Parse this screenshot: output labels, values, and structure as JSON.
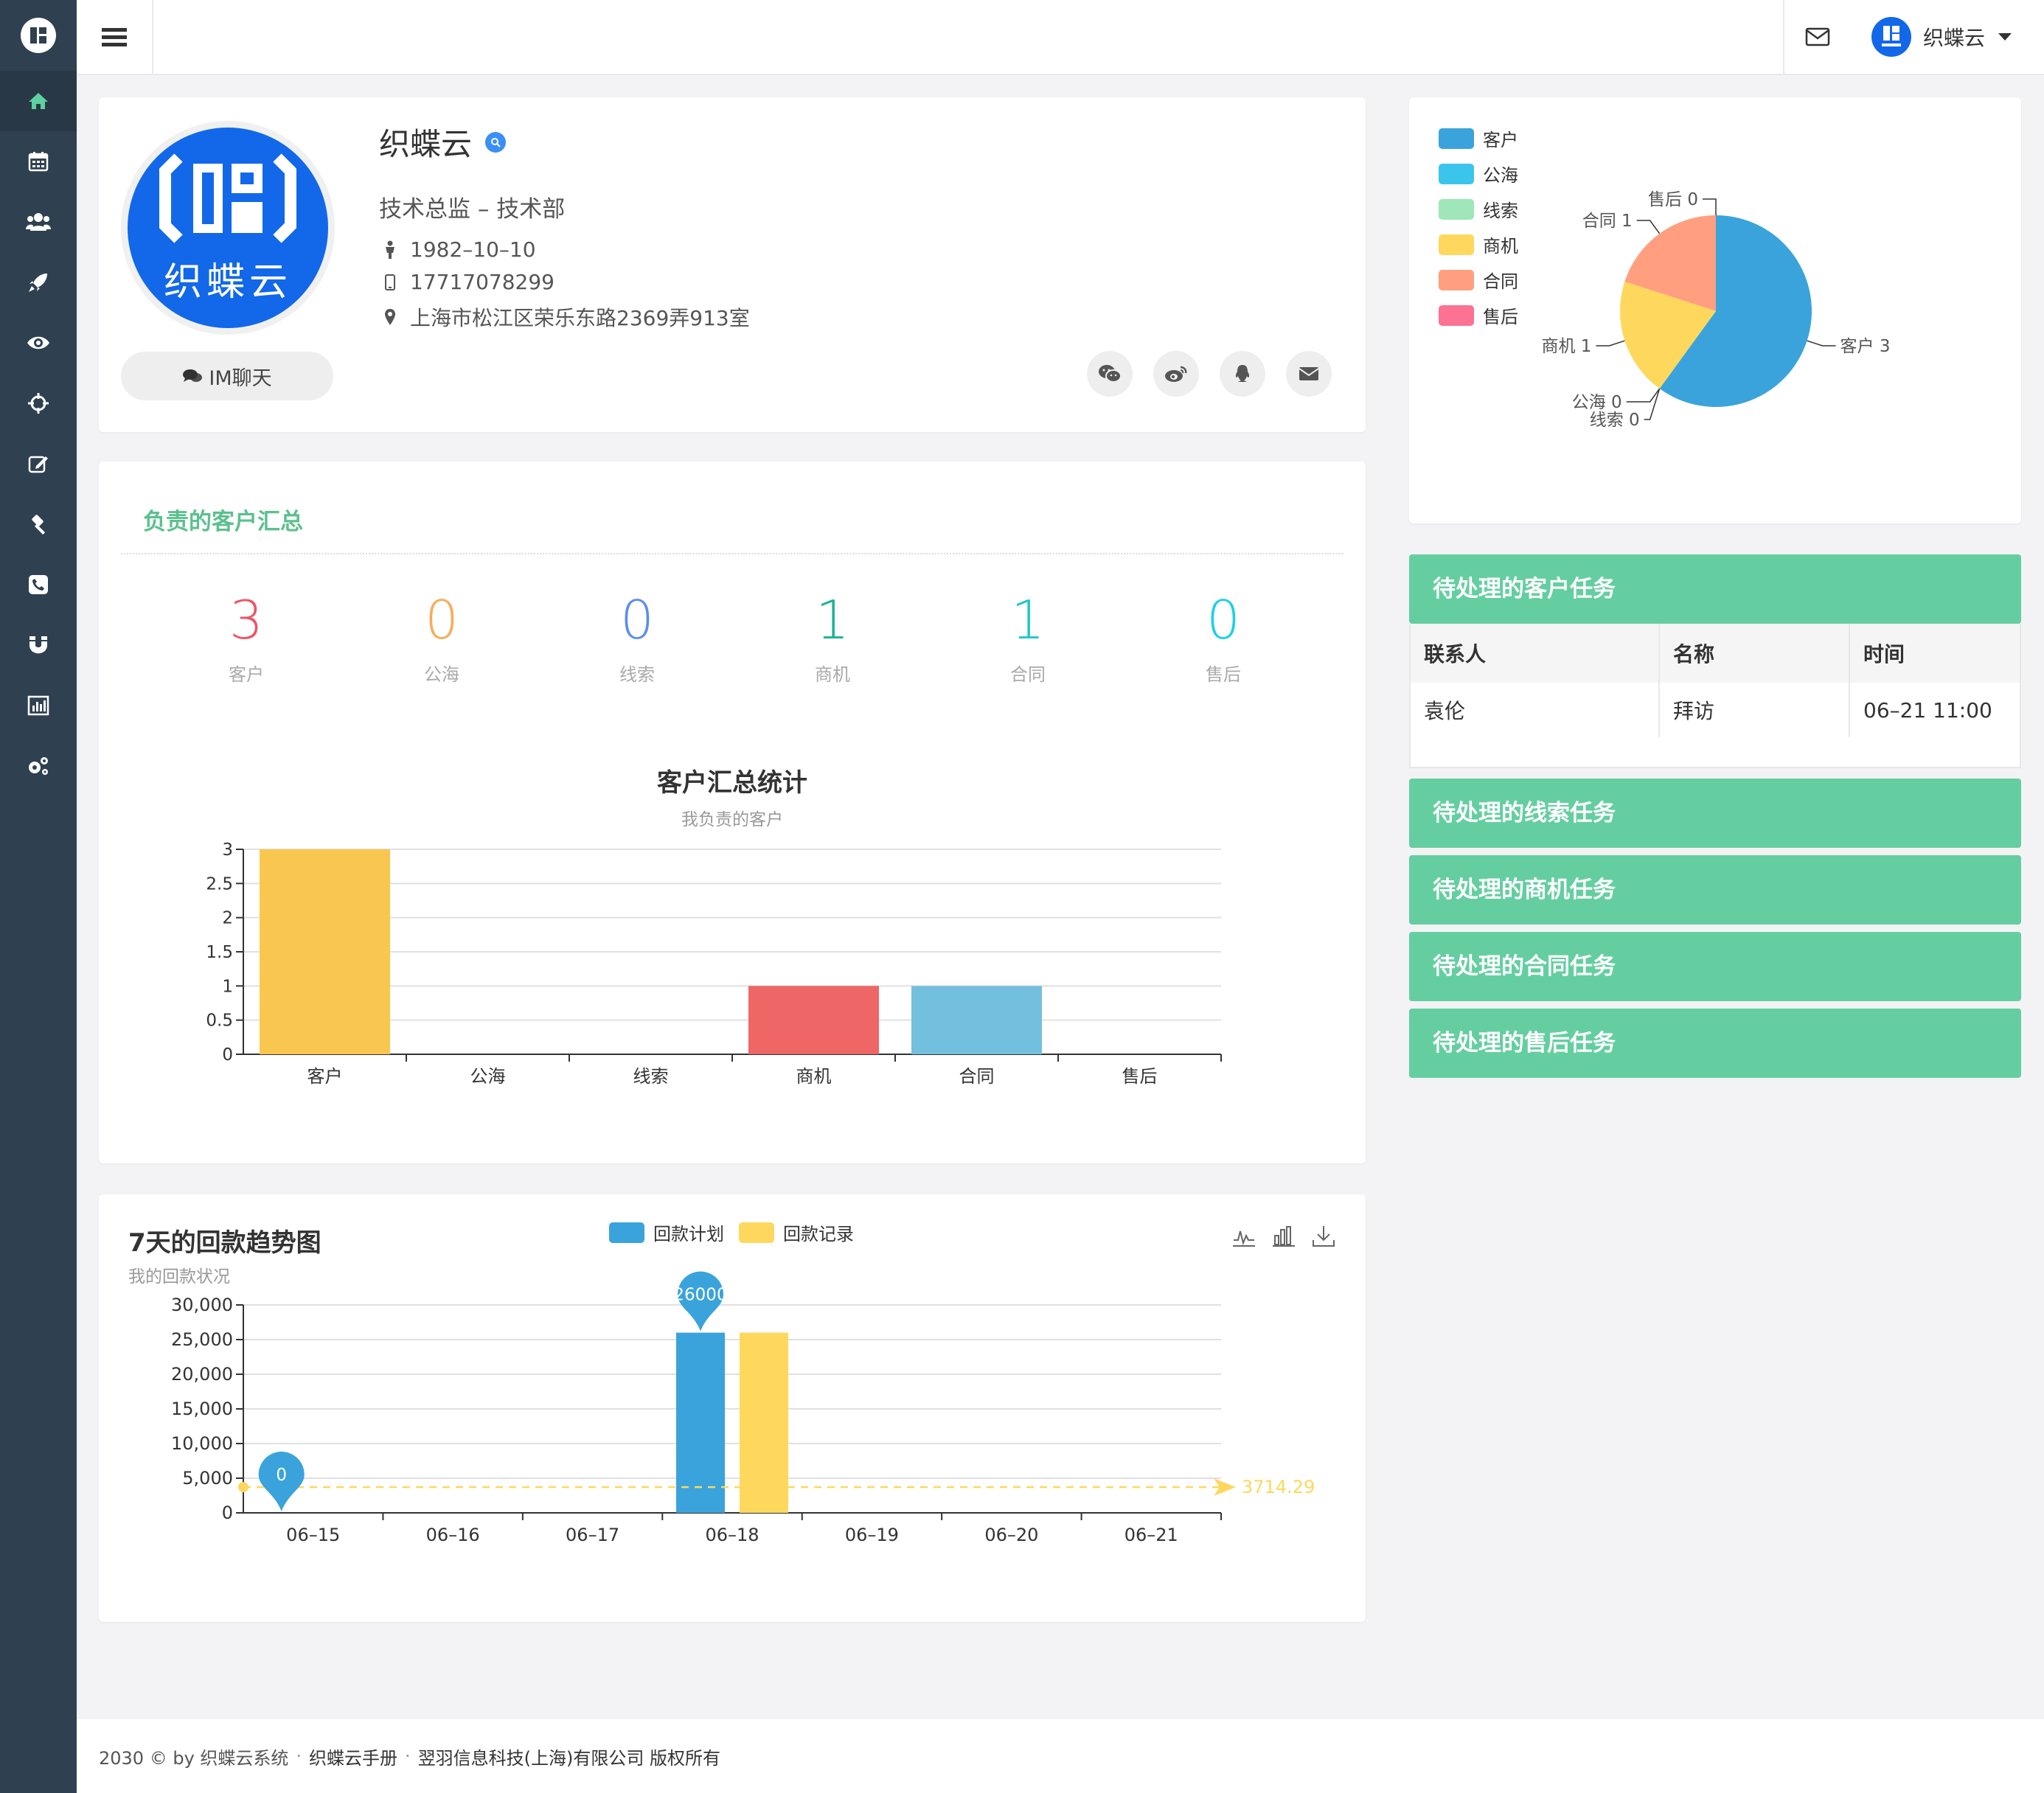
{
  "user": {
    "name": "织蝶云"
  },
  "profile": {
    "name": "织蝶云",
    "avatar_text": "织蝶云",
    "title": "技术总监 – 技术部",
    "birthday": "1982–10–10",
    "phone": "17717078299",
    "address": "上海市松江区荣乐东路2369弄913室",
    "im_label": "IM聊天"
  },
  "summary": {
    "title": "负责的客户汇总",
    "stats": [
      {
        "value": "3",
        "label": "客户",
        "color": "#ed5565"
      },
      {
        "value": "0",
        "label": "公海",
        "color": "#f8ac59"
      },
      {
        "value": "0",
        "label": "线索",
        "color": "#5d8ee8"
      },
      {
        "value": "1",
        "label": "商机",
        "color": "#1ab394"
      },
      {
        "value": "1",
        "label": "合同",
        "color": "#23c6c8"
      },
      {
        "value": "0",
        "label": "售后",
        "color": "#1cd0e6"
      }
    ]
  },
  "chart_data": [
    {
      "type": "bar",
      "title": "客户汇总统计",
      "subtitle": "我负责的客户",
      "categories": [
        "客户",
        "公海",
        "线索",
        "商机",
        "合同",
        "售后"
      ],
      "values": [
        3,
        0,
        0,
        1,
        1,
        0
      ],
      "colors": [
        "#f9c74f",
        "#f9c74f",
        "#f9c74f",
        "#ee6666",
        "#73c0de",
        "#73c0de"
      ],
      "ylim": [
        0,
        3
      ],
      "yticks": [
        "0",
        "0.5",
        "1",
        "1.5",
        "2",
        "2.5",
        "3"
      ],
      "grid": true
    },
    {
      "type": "bar",
      "title": "7天的回款趋势图",
      "subtitle": "我的回款状况",
      "categories": [
        "06–15",
        "06–16",
        "06–17",
        "06–18",
        "06–19",
        "06–20",
        "06–21"
      ],
      "series": [
        {
          "name": "回款计划",
          "color": "#3aa3db",
          "values": [
            0,
            0,
            0,
            26000,
            0,
            0,
            0
          ]
        },
        {
          "name": "回款记录",
          "color": "#fdd85d",
          "values": [
            0,
            0,
            0,
            26000,
            0,
            0,
            0
          ]
        }
      ],
      "markers": [
        {
          "label": "0",
          "category": "06–15"
        },
        {
          "label": "26000",
          "category": "06–18"
        }
      ],
      "average_line": {
        "value": 3714.29,
        "label": "3714.29"
      },
      "ylim": [
        0,
        30000
      ],
      "yticks": [
        "0",
        "5,000",
        "10,000",
        "15,000",
        "20,000",
        "25,000",
        "30,000"
      ],
      "legend_position": "top-center",
      "grid": true
    },
    {
      "type": "pie",
      "legend_position": "top-left",
      "slices": [
        {
          "name": "客户",
          "value": 3,
          "color": "#3aa3db",
          "label": "客户 3"
        },
        {
          "name": "公海",
          "value": 0,
          "color": "#3cc5ea",
          "label": "公海 0"
        },
        {
          "name": "线索",
          "value": 0,
          "color": "#9fe6b8",
          "label": "线索 0"
        },
        {
          "name": "商机",
          "value": 1,
          "color": "#fed85d",
          "label": "商机 1"
        },
        {
          "name": "合同",
          "value": 1,
          "color": "#ff9f7f",
          "label": "合同 1"
        },
        {
          "name": "售后",
          "value": 0,
          "color": "#fb7293",
          "label": "售后 0"
        }
      ]
    }
  ],
  "tasks": {
    "customer": {
      "title": "待处理的客户任务",
      "columns": [
        "联系人",
        "名称",
        "时间"
      ],
      "rows": [
        [
          "袁伦",
          "拜访",
          "06–21 11:00"
        ]
      ]
    },
    "lead": {
      "title": "待处理的线索任务"
    },
    "opportunity": {
      "title": "待处理的商机任务"
    },
    "contract": {
      "title": "待处理的合同任务"
    },
    "aftersale": {
      "title": "待处理的售后任务"
    }
  },
  "footer": {
    "copyright": "2030 © by 织蝶云系统",
    "manual": "织蝶云手册",
    "company": "翌羽信息科技(上海)有限公司 版权所有",
    "separator": "·"
  },
  "icons": [
    "home-icon",
    "calendar-icon",
    "users-icon",
    "rocket-icon",
    "eye-icon",
    "crosshair-icon",
    "edit-icon",
    "gavel-icon",
    "phone-icon",
    "magnet-icon",
    "bar-chart-icon",
    "cogs-icon"
  ]
}
